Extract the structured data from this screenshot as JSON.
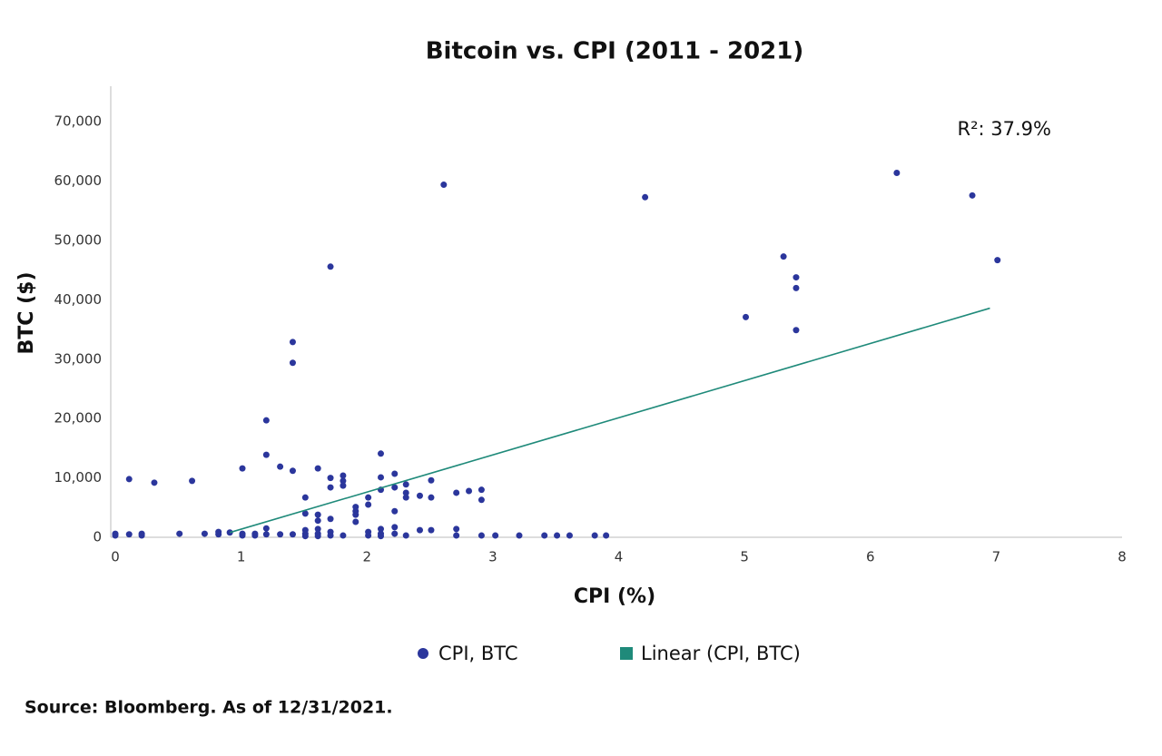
{
  "chart_data": {
    "type": "scatter",
    "title": "Bitcoin vs. CPI (2011 - 2021)",
    "x_label": "CPI (%)",
    "y_label": "BTC ($)",
    "annotation": "R²: 37.9%",
    "source": "Source: Bloomberg. As of 12/31/2021.",
    "xlim": [
      0,
      8
    ],
    "xticks": [
      0,
      1,
      2,
      3,
      4,
      5,
      6,
      7,
      8
    ],
    "ylim": [
      0,
      76000
    ],
    "yticks": [
      0,
      {
        "value": 10000,
        "label": "10,000"
      },
      {
        "value": 20000,
        "label": "20,000"
      },
      {
        "value": 30000,
        "label": "30,000"
      },
      {
        "value": 40000,
        "label": "40,000"
      },
      {
        "value": 50000,
        "label": "50,000"
      },
      {
        "value": 60000,
        "label": "60,000"
      },
      {
        "value": 70000,
        "label": "70,000"
      }
    ],
    "series": [
      {
        "name": "CPI, BTC",
        "color": "#2b369c",
        "x": [
          0,
          0,
          0.11,
          0.11,
          0.21,
          0.21,
          0.31,
          0.51,
          0.61,
          0.71,
          0.82,
          0.82,
          0.91,
          1.01,
          1.01,
          1.01,
          1.11,
          1.11,
          1.2,
          1.2,
          1.2,
          1.2,
          1.31,
          1.31,
          1.41,
          1.41,
          1.41,
          1.41,
          1.51,
          1.51,
          1.51,
          1.51,
          1.51,
          1.61,
          1.61,
          1.61,
          1.61,
          1.61,
          1.61,
          1.71,
          1.71,
          1.71,
          1.71,
          1.71,
          1.71,
          1.81,
          1.81,
          1.81,
          1.81,
          1.91,
          1.91,
          1.91,
          1.91,
          2.01,
          2.01,
          2.01,
          2.01,
          2.11,
          2.11,
          2.11,
          2.11,
          2.11,
          2.11,
          2.22,
          2.22,
          2.22,
          2.22,
          2.22,
          2.31,
          2.31,
          2.31,
          2.31,
          2.42,
          2.42,
          2.51,
          2.51,
          2.51,
          2.61,
          2.71,
          2.71,
          2.71,
          2.81,
          2.91,
          2.91,
          2.91,
          3.02,
          3.21,
          3.41,
          3.51,
          3.61,
          3.81,
          3.9,
          4.21,
          5.01,
          5.31,
          5.41,
          5.41,
          5.41,
          6.21,
          6.81,
          7.01
        ],
        "values": [
          600,
          300,
          9800,
          500,
          600,
          300,
          9200,
          600,
          9500,
          600,
          900,
          500,
          800,
          11600,
          600,
          300,
          600,
          300,
          19700,
          13900,
          1500,
          500,
          11900,
          500,
          11200,
          32900,
          29400,
          500,
          6700,
          4000,
          1200,
          600,
          200,
          11600,
          3800,
          2800,
          1400,
          600,
          200,
          45600,
          10000,
          8400,
          3100,
          900,
          300,
          10400,
          9500,
          8700,
          300,
          5100,
          4400,
          3800,
          2600,
          6700,
          5500,
          900,
          300,
          14100,
          10100,
          8000,
          1400,
          600,
          200,
          10700,
          8400,
          4400,
          1700,
          600,
          8900,
          7500,
          6700,
          300,
          7000,
          1200,
          9600,
          6700,
          1200,
          59400,
          7500,
          1400,
          300,
          7800,
          8000,
          6300,
          300,
          300,
          300,
          300,
          300,
          300,
          300,
          300,
          57300,
          37100,
          47300,
          43800,
          42000,
          34900,
          61400,
          57600,
          46700
        ]
      },
      {
        "name": "Linear (CPI, BTC)",
        "color": "#1f8a7a",
        "x": [
          0.91,
          6.95
        ],
        "values": [
          800,
          38600
        ]
      }
    ]
  }
}
